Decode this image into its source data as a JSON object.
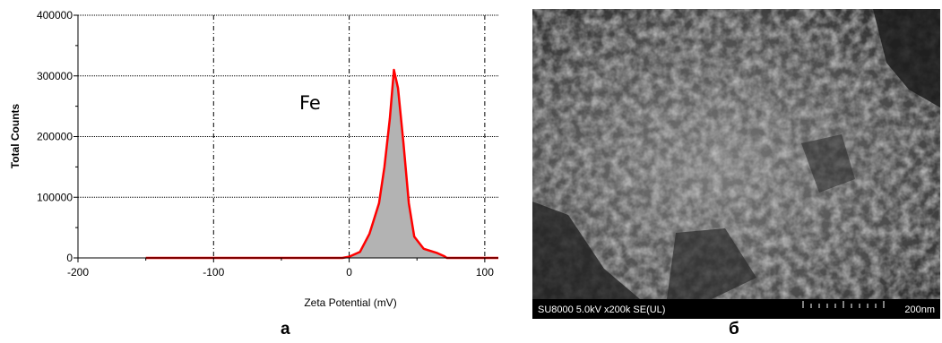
{
  "chart_data": {
    "type": "area",
    "title": "",
    "xlabel": "Zeta Potential (mV)",
    "ylabel": "Total Counts",
    "xlim": [
      -200,
      110
    ],
    "ylim": [
      0,
      400000
    ],
    "x_ticks": [
      "-200",
      "-100",
      "0",
      "100"
    ],
    "y_ticks": [
      "0",
      "100000",
      "200000",
      "300000",
      "400000"
    ],
    "grid": true,
    "annotation": "Fe",
    "series": [
      {
        "color": "#ff0000",
        "fill": "#b3b3b3",
        "x": [
          -150,
          -100,
          -50,
          -5,
          0,
          8,
          15,
          22,
          26,
          30,
          33,
          36,
          40,
          44,
          48,
          55,
          65,
          70,
          72,
          100,
          110
        ],
        "y": [
          0,
          0,
          0,
          0,
          2000,
          10000,
          40000,
          90000,
          150000,
          230000,
          310000,
          280000,
          190000,
          90000,
          35000,
          15000,
          8000,
          3000,
          0,
          0,
          0
        ]
      }
    ]
  },
  "labels": {
    "panel_a": "а",
    "panel_b": "б"
  },
  "sem": {
    "params": "SU8000 5.0kV x200k SE(UL)",
    "scale": "200nm"
  },
  "colors": {
    "curve": "#ff0000",
    "fill": "#b3b3b3"
  }
}
